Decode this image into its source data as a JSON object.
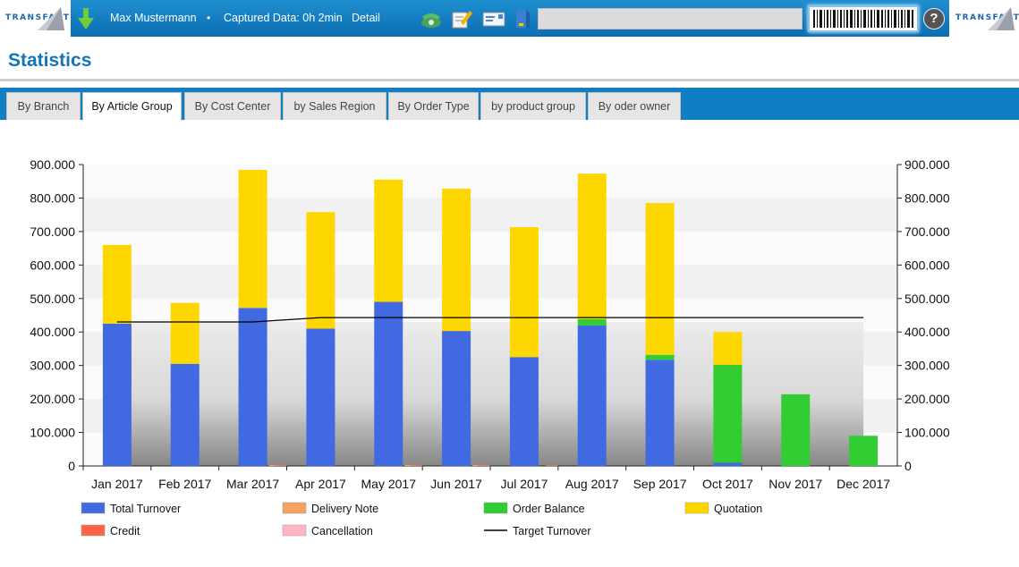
{
  "header": {
    "logo_left": "TRANSFACT",
    "logo_right": "TRANSFACT",
    "user_name": "Max Mustermann",
    "separator": "•",
    "captured_data": "Captured Data: 0h 2min",
    "detail_link": "Detail",
    "icons": [
      "download-arrow-icon",
      "phone-icon",
      "edit-note-icon",
      "email-icon",
      "document-icon",
      "barcode-icon",
      "help-icon"
    ],
    "help_label": "?"
  },
  "page": {
    "title": "Statistics"
  },
  "tabs": [
    {
      "label": "By Branch",
      "active": false
    },
    {
      "label": "By Article Group",
      "active": true
    },
    {
      "label": "By Cost Center",
      "active": false
    },
    {
      "label": "by Sales Region",
      "active": false
    },
    {
      "label": "By Order Type",
      "active": false
    },
    {
      "label": "by product group",
      "active": false
    },
    {
      "label": "By oder owner",
      "active": false
    }
  ],
  "colors": {
    "total_turnover": "#4169e1",
    "delivery_note": "#f4a460",
    "order_balance": "#32cd32",
    "quotation": "#ffd700",
    "credit": "#ff6347",
    "cancellation": "#ffb6c1",
    "target_turnover": "#000000",
    "brand_blue": "#1474b8"
  },
  "chart_data": {
    "type": "bar",
    "stacked": true,
    "categories": [
      "Jan 2017",
      "Feb 2017",
      "Mar 2017",
      "Apr 2017",
      "May 2017",
      "Jun 2017",
      "Jul 2017",
      "Aug 2017",
      "Sep 2017",
      "Oct 2017",
      "Nov 2017",
      "Dec 2017"
    ],
    "y_ticks": [
      "0",
      "100.000",
      "200.000",
      "300.000",
      "400.000",
      "500.000",
      "600.000",
      "700.000",
      "800.000",
      "900.000"
    ],
    "ylim": [
      0,
      900000
    ],
    "series": [
      {
        "name": "Total Turnover",
        "values": [
          425000,
          305000,
          472000,
          410000,
          490000,
          403000,
          325000,
          420000,
          317000,
          10000,
          0,
          0
        ]
      },
      {
        "name": "Order Balance",
        "values": [
          0,
          0,
          0,
          0,
          0,
          0,
          0,
          18000,
          15000,
          292000,
          214000,
          90000
        ]
      },
      {
        "name": "Quotation",
        "values": [
          235000,
          182000,
          412000,
          348000,
          365000,
          425000,
          388000,
          435000,
          453000,
          98000,
          0,
          0
        ]
      },
      {
        "name": "Delivery Note",
        "values": [
          0,
          0,
          3000,
          0,
          3000,
          3000,
          0,
          0,
          0,
          0,
          0,
          0
        ]
      },
      {
        "name": "Credit",
        "values": [
          0,
          0,
          2000,
          0,
          2000,
          2000,
          2000,
          0,
          0,
          0,
          0,
          0
        ]
      },
      {
        "name": "Cancellation",
        "values": [
          0,
          0,
          0,
          0,
          0,
          0,
          0,
          0,
          0,
          0,
          0,
          0
        ]
      }
    ],
    "target_turnover": {
      "name": "Target Turnover",
      "values": [
        430000,
        430000,
        430000,
        443000,
        443000,
        443000,
        443000,
        443000,
        443000,
        443000,
        443000,
        443000
      ]
    },
    "legend": [
      "Total Turnover",
      "Delivery Note",
      "Order Balance",
      "Quotation",
      "Credit",
      "Cancellation",
      "Target Turnover"
    ],
    "legend_position": "bottom",
    "grid": true
  }
}
